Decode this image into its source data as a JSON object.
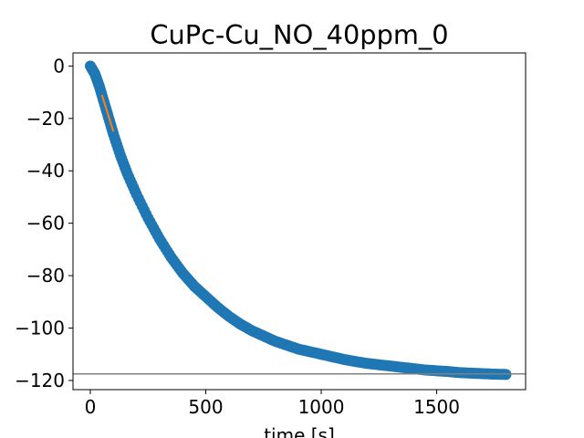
{
  "chart_data": {
    "type": "scatter",
    "title": "CuPc-Cu_NO_40ppm_0",
    "xlabel": "time [s]",
    "ylabel": "",
    "xlim": [
      -75,
      1885
    ],
    "ylim": [
      -123.5,
      5
    ],
    "x_ticks": [
      0,
      500,
      1000,
      1500
    ],
    "x_tick_labels": [
      "0",
      "500",
      "1000",
      "1500"
    ],
    "y_ticks": [
      0,
      -20,
      -40,
      -60,
      -80,
      -100,
      -120
    ],
    "y_tick_labels": [
      "0",
      "−20",
      "−40",
      "−60",
      "−80",
      "−100",
      "−120"
    ],
    "grid": false,
    "legend": "none",
    "series": [
      {
        "kind": "scatter",
        "color": "#1f77b4",
        "x": [
          0,
          20,
          40,
          60,
          80,
          100,
          130,
          160,
          200,
          250,
          300,
          350,
          400,
          450,
          500,
          550,
          600,
          650,
          700,
          750,
          800,
          850,
          900,
          950,
          1000,
          1050,
          1100,
          1150,
          1200,
          1250,
          1300,
          1350,
          1400,
          1450,
          1500,
          1550,
          1600,
          1650,
          1700,
          1750,
          1800
        ],
        "y": [
          0,
          -3,
          -8,
          -14,
          -20,
          -26,
          -34,
          -41,
          -49,
          -58,
          -66,
          -73,
          -79,
          -84,
          -88,
          -92,
          -95.5,
          -98.5,
          -101,
          -103,
          -105,
          -106.5,
          -108,
          -109,
          -110,
          -111,
          -112,
          -112.8,
          -113.5,
          -114,
          -114.5,
          -115,
          -115.5,
          -116,
          -116.3,
          -116.6,
          -117,
          -117.2,
          -117.4,
          -117.6,
          -117.7
        ]
      },
      {
        "kind": "line",
        "color": "#ff7f0e",
        "x": [
          50,
          100
        ],
        "y": [
          -11,
          -25
        ]
      },
      {
        "kind": "hline",
        "color": "#808080",
        "y": -117.5
      }
    ]
  }
}
